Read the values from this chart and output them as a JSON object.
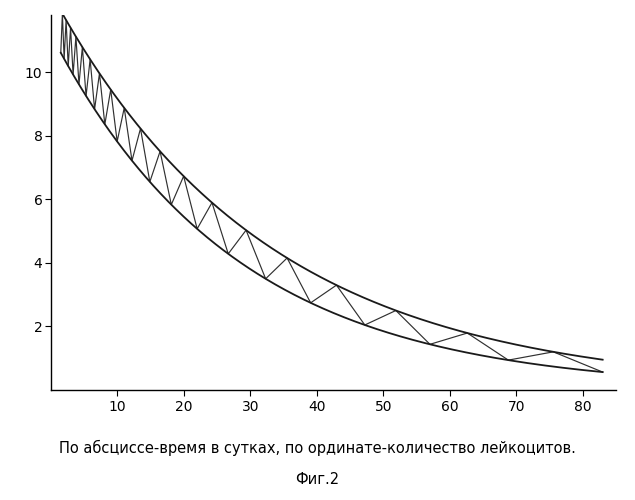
{
  "xlabel": "По абсциссе-время в сутках, по ординате-количество лейкоцитов.",
  "fig_label": "Фиг.2",
  "xlabel_fontsize": 10.5,
  "fig_label_fontsize": 10.5,
  "yticks": [
    2,
    4,
    6,
    8,
    10
  ],
  "xticks": [
    10,
    20,
    30,
    40,
    50,
    60,
    70,
    80
  ],
  "xlim": [
    0,
    85
  ],
  "ylim": [
    0,
    11.8
  ],
  "background_color": "#ffffff",
  "line_color": "#1a1a1a",
  "upper_curve_a": 12.5,
  "upper_curve_b": 0.031,
  "lower_curve_a": 11.2,
  "lower_curve_b": 0.036,
  "x_start": 1.5,
  "x_end": 83
}
